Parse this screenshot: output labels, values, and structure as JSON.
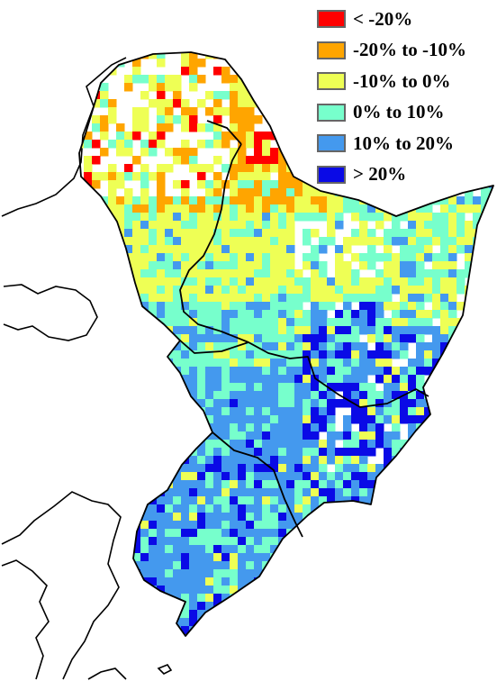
{
  "legend": {
    "items": [
      {
        "label": "< -20%",
        "color": "#ff0000"
      },
      {
        "label": "-20% to -10%",
        "color": "#ffa500"
      },
      {
        "label": "-10% to 0%",
        "color": "#eeff55"
      },
      {
        "label": "0% to 10%",
        "color": "#77ffcc"
      },
      {
        "label": "10% to 20%",
        "color": "#4499ee"
      },
      {
        "label": "> 20%",
        "color": "#0a0ae6"
      }
    ]
  },
  "map": {
    "border_color": "#000000",
    "background": "#ffffff"
  }
}
